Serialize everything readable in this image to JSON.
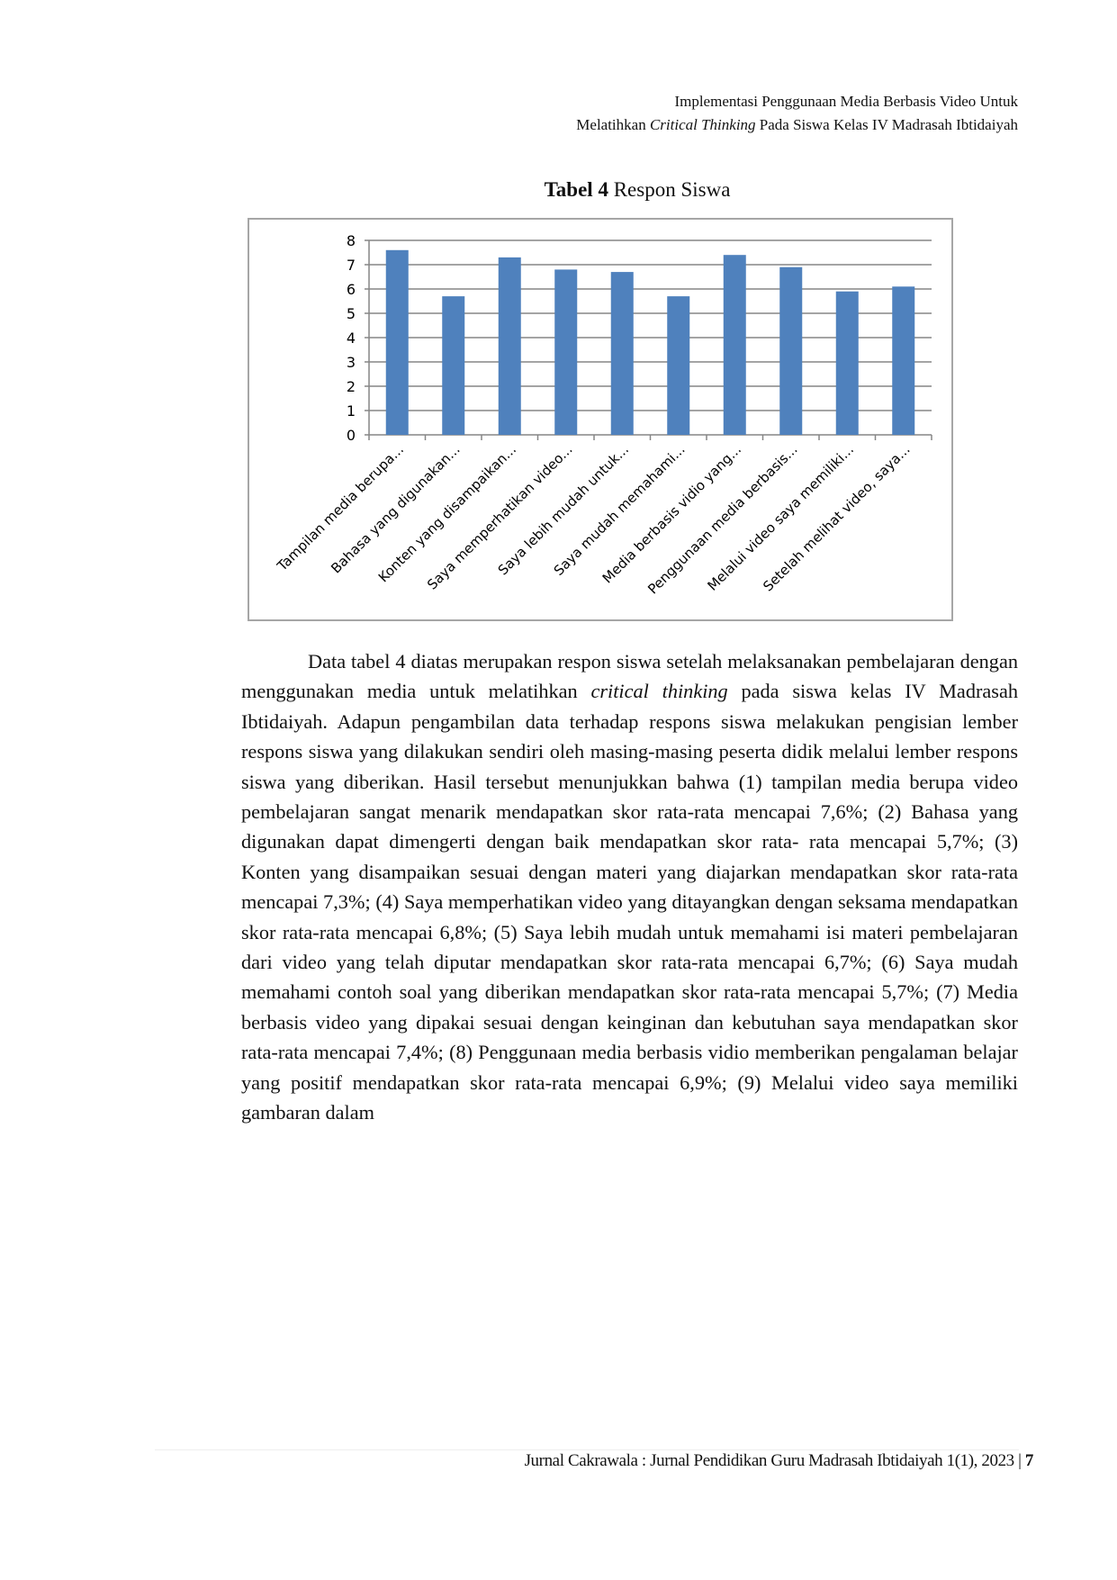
{
  "header": {
    "line1": "Implementasi Penggunaan Media Berbasis Video Untuk",
    "line2_pre": "Melatihkan ",
    "line2_italic": "Critical Thinking",
    "line2_post": " Pada Siswa Kelas IV Madrasah Ibtidaiyah"
  },
  "figure": {
    "label": "Tabel 4",
    "caption": " Respon Siswa"
  },
  "chart_data": {
    "type": "bar",
    "title": "",
    "xlabel": "",
    "ylabel": "",
    "ylim": [
      0,
      8
    ],
    "yticks": [
      "0",
      "1",
      "2",
      "3",
      "4",
      "5",
      "6",
      "7",
      "8"
    ],
    "grid": true,
    "legend": "none",
    "bar_color": "#4f81bd",
    "categories": [
      "Tampilan media berupa...",
      "Bahasa yang digunakan...",
      "Konten yang disampaikan...",
      "Saya memperhatikan video...",
      "Saya lebih mudah untuk...",
      "Saya mudah memahami...",
      "Media berbasis vidio yang...",
      "Penggunaan media berbasis...",
      "Melalui video saya memiliki...",
      "Setelah melihat video, saya..."
    ],
    "values": [
      7.6,
      5.7,
      7.3,
      6.8,
      6.7,
      5.7,
      7.4,
      6.9,
      5.9,
      6.1
    ]
  },
  "body": {
    "p1": "Data tabel 4 diatas merupakan respon siswa setelah melaksanakan pembelajaran dengan menggunakan media untuk melatihkan ",
    "p1_italic": "critical thinking",
    "p1_rest": " pada siswa kelas IV Madrasah Ibtidaiyah. Adapun pengambilan data terhadap respons siswa melakukan pengisian lember respons siswa yang dilakukan sendiri oleh masing-masing peserta didik melalui lember respons siswa yang diberikan. Hasil tersebut menunjukkan bahwa (1) tampilan media berupa video pembelajaran sangat menarik mendapatkan skor rata-rata mencapai 7,6%; (2) Bahasa yang digunakan dapat dimengerti dengan baik mendapatkan skor rata- rata mencapai 5,7%; (3) Konten yang disampaikan sesuai dengan materi yang diajarkan mendapatkan skor rata-rata mencapai 7,3%; (4) Saya memperhatikan video yang ditayangkan dengan seksama mendapatkan skor rata-rata mencapai 6,8%; (5) Saya lebih mudah untuk memahami isi materi pembelajaran dari video yang telah diputar mendapatkan skor rata-rata mencapai 6,7%; (6) Saya mudah memahami contoh soal yang diberikan mendapatkan skor rata-rata mencapai 5,7%; (7) Media berbasis video yang dipakai sesuai dengan keinginan dan kebutuhan saya mendapatkan skor rata-rata mencapai 7,4%; (8) Penggunaan media berbasis vidio memberikan pengalaman belajar yang positif mendapatkan skor rata-rata mencapai 6,9%; (9) Melalui video saya memiliki gambaran dalam"
  },
  "footer": {
    "journal": "Jurnal Cakrawala : Jurnal Pendidikan Guru Madrasah Ibtidaiyah 1(1), 2023",
    "separator": " | ",
    "page": "7"
  }
}
